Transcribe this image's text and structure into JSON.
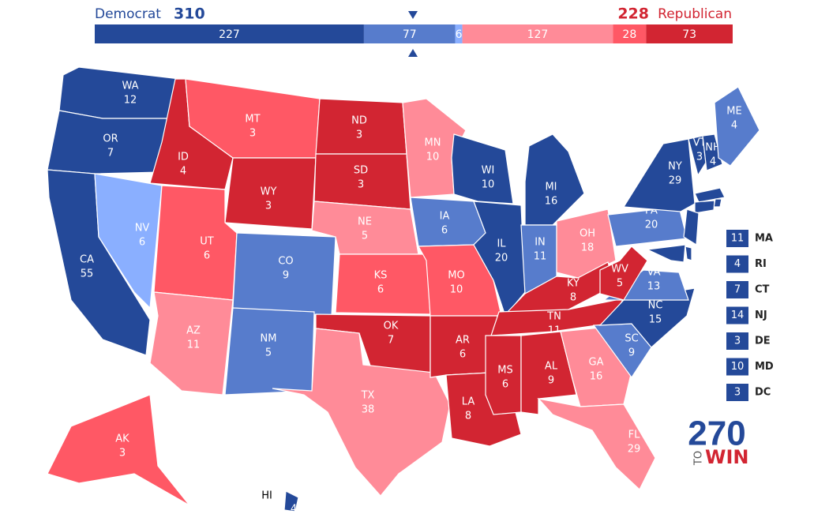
{
  "header": {
    "democrat": {
      "label": "Democrat",
      "total": 310
    },
    "republican": {
      "label": "Republican",
      "total": 228
    },
    "segments": [
      {
        "value": 227,
        "color": "#244999"
      },
      {
        "value": 77,
        "color": "#577ccc"
      },
      {
        "value": 6,
        "color": "#8aafff"
      },
      {
        "value": 127,
        "color": "#ff8b98"
      },
      {
        "value": 28,
        "color": "#ff5865"
      },
      {
        "value": 73,
        "color": "#d22532"
      }
    ]
  },
  "states": [
    {
      "abbr": "WA",
      "votes": 12,
      "color": "#244999"
    },
    {
      "abbr": "OR",
      "votes": 7,
      "color": "#244999"
    },
    {
      "abbr": "CA",
      "votes": 55,
      "color": "#244999"
    },
    {
      "abbr": "NV",
      "votes": 6,
      "color": "#8aafff"
    },
    {
      "abbr": "ID",
      "votes": 4,
      "color": "#d22532"
    },
    {
      "abbr": "MT",
      "votes": 3,
      "color": "#ff5865"
    },
    {
      "abbr": "WY",
      "votes": 3,
      "color": "#d22532"
    },
    {
      "abbr": "UT",
      "votes": 6,
      "color": "#ff5865"
    },
    {
      "abbr": "AZ",
      "votes": 11,
      "color": "#ff8b98"
    },
    {
      "abbr": "CO",
      "votes": 9,
      "color": "#577ccc"
    },
    {
      "abbr": "NM",
      "votes": 5,
      "color": "#577ccc"
    },
    {
      "abbr": "ND",
      "votes": 3,
      "color": "#d22532"
    },
    {
      "abbr": "SD",
      "votes": 3,
      "color": "#d22532"
    },
    {
      "abbr": "NE",
      "votes": 5,
      "color": "#ff8b98"
    },
    {
      "abbr": "KS",
      "votes": 6,
      "color": "#ff5865"
    },
    {
      "abbr": "OK",
      "votes": 7,
      "color": "#d22532"
    },
    {
      "abbr": "TX",
      "votes": 38,
      "color": "#ff8b98"
    },
    {
      "abbr": "MN",
      "votes": 10,
      "color": "#ff8b98"
    },
    {
      "abbr": "IA",
      "votes": 6,
      "color": "#577ccc"
    },
    {
      "abbr": "MO",
      "votes": 10,
      "color": "#ff5865"
    },
    {
      "abbr": "AR",
      "votes": 6,
      "color": "#d22532"
    },
    {
      "abbr": "LA",
      "votes": 8,
      "color": "#d22532"
    },
    {
      "abbr": "WI",
      "votes": 10,
      "color": "#244999"
    },
    {
      "abbr": "IL",
      "votes": 20,
      "color": "#244999"
    },
    {
      "abbr": "MI",
      "votes": 16,
      "color": "#244999"
    },
    {
      "abbr": "IN",
      "votes": 11,
      "color": "#577ccc"
    },
    {
      "abbr": "OH",
      "votes": 18,
      "color": "#ff8b98"
    },
    {
      "abbr": "KY",
      "votes": 8,
      "color": "#d22532"
    },
    {
      "abbr": "TN",
      "votes": 11,
      "color": "#d22532"
    },
    {
      "abbr": "MS",
      "votes": 6,
      "color": "#d22532"
    },
    {
      "abbr": "AL",
      "votes": 9,
      "color": "#d22532"
    },
    {
      "abbr": "GA",
      "votes": 16,
      "color": "#ff8b98"
    },
    {
      "abbr": "FL",
      "votes": 29,
      "color": "#ff8b98"
    },
    {
      "abbr": "SC",
      "votes": 9,
      "color": "#577ccc"
    },
    {
      "abbr": "NC",
      "votes": 15,
      "color": "#244999"
    },
    {
      "abbr": "VA",
      "votes": 13,
      "color": "#577ccc"
    },
    {
      "abbr": "WV",
      "votes": 5,
      "color": "#d22532"
    },
    {
      "abbr": "PA",
      "votes": 20,
      "color": "#577ccc"
    },
    {
      "abbr": "NY",
      "votes": 29,
      "color": "#244999"
    },
    {
      "abbr": "VT",
      "votes": 3,
      "color": "#244999"
    },
    {
      "abbr": "NH",
      "votes": 4,
      "color": "#244999"
    },
    {
      "abbr": "ME",
      "votes": 4,
      "color": "#577ccc"
    },
    {
      "abbr": "AK",
      "votes": 3,
      "color": "#ff5865"
    },
    {
      "abbr": "HI",
      "votes": 4,
      "color": "#244999"
    }
  ],
  "small_states": [
    {
      "abbr": "MA",
      "votes": 11,
      "color": "#244999"
    },
    {
      "abbr": "RI",
      "votes": 4,
      "color": "#244999"
    },
    {
      "abbr": "CT",
      "votes": 7,
      "color": "#244999"
    },
    {
      "abbr": "NJ",
      "votes": 14,
      "color": "#244999"
    },
    {
      "abbr": "DE",
      "votes": 3,
      "color": "#244999"
    },
    {
      "abbr": "MD",
      "votes": 10,
      "color": "#244999"
    },
    {
      "abbr": "DC",
      "votes": 3,
      "color": "#244999"
    }
  ],
  "logo": {
    "number": "270",
    "to": "TO",
    "win": "WIN"
  }
}
